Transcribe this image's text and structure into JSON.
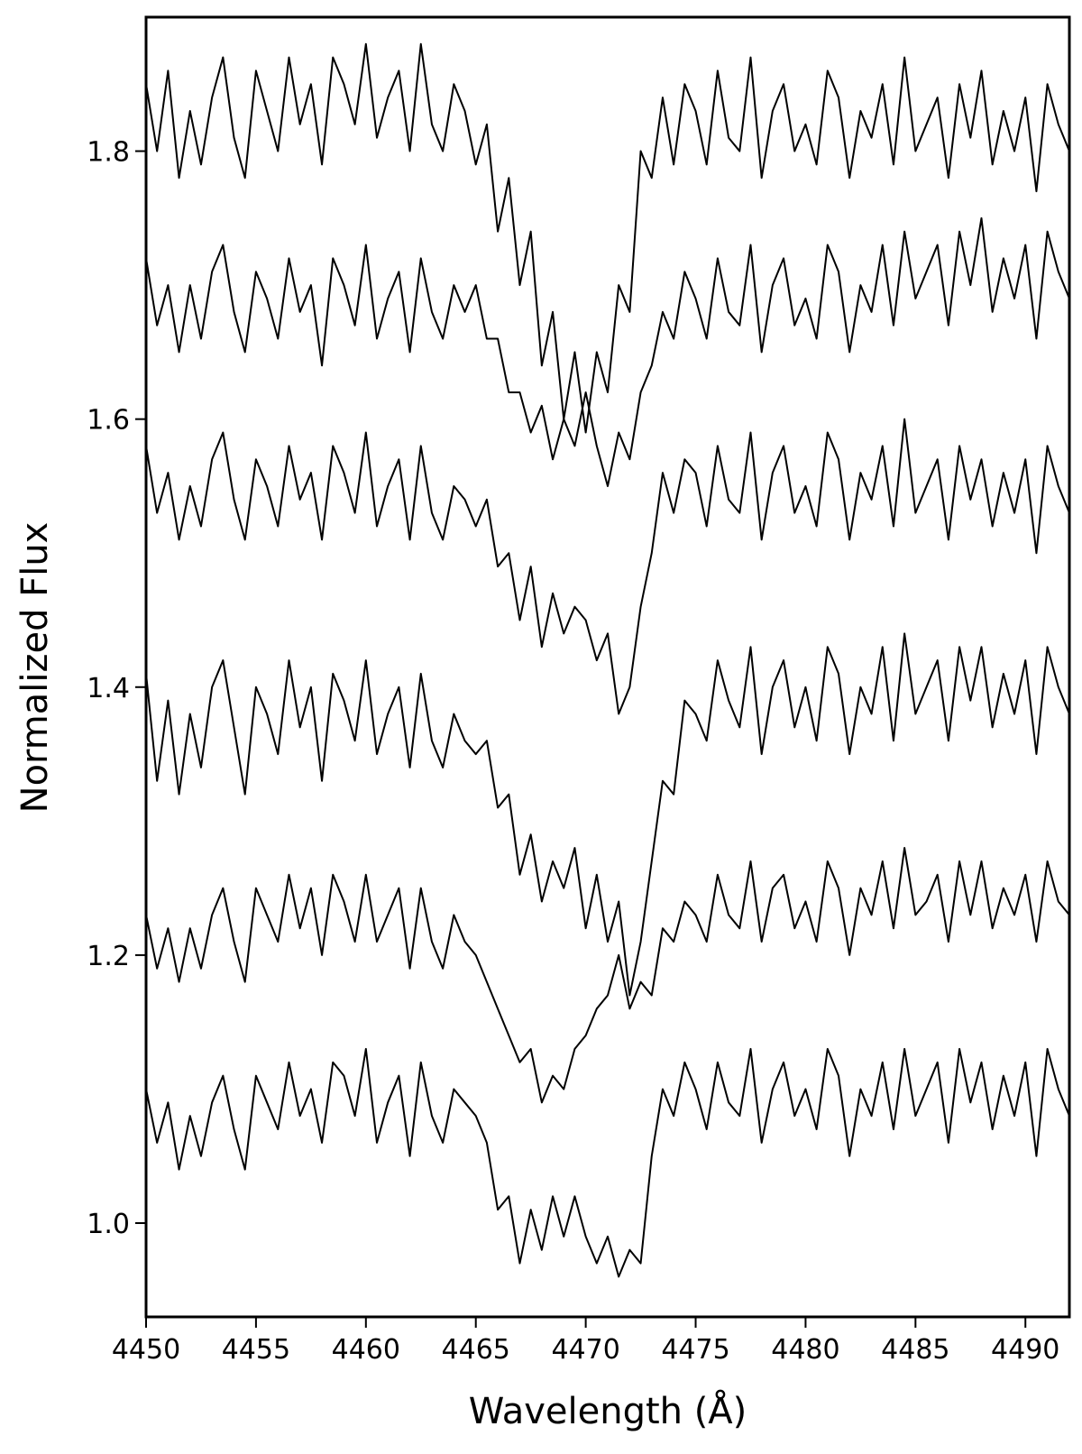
{
  "chart_data": {
    "type": "line",
    "xlabel": "Wavelength (Å)",
    "ylabel": "Normalized Flux",
    "xlim": [
      4450,
      4492
    ],
    "ylim": [
      0.93,
      1.9
    ],
    "xticks": [
      4450,
      4455,
      4460,
      4465,
      4470,
      4475,
      4480,
      4485,
      4490
    ],
    "yticks": [
      {
        "value": 1,
        "label": "1.0"
      },
      1.2,
      1.4,
      1.6,
      1.8
    ],
    "x": [
      4450,
      4450.5,
      4451,
      4451.5,
      4452,
      4452.5,
      4453,
      4453.5,
      4454,
      4454.5,
      4455,
      4455.5,
      4456,
      4456.5,
      4457,
      4457.5,
      4458,
      4458.5,
      4459,
      4459.5,
      4460,
      4460.5,
      4461,
      4461.5,
      4462,
      4462.5,
      4463,
      4463.5,
      4464,
      4464.5,
      4465,
      4465.5,
      4466,
      4466.5,
      4467,
      4467.5,
      4468,
      4468.5,
      4469,
      4469.5,
      4470,
      4470.5,
      4471,
      4471.5,
      4472,
      4472.5,
      4473,
      4473.5,
      4474,
      4474.5,
      4475,
      4475.5,
      4476,
      4476.5,
      4477,
      4477.5,
      4478,
      4478.5,
      4479,
      4479.5,
      4480,
      4480.5,
      4481,
      4481.5,
      4482,
      4482.5,
      4483,
      4483.5,
      4484,
      4484.5,
      4485,
      4485.5,
      4486,
      4486.5,
      4487,
      4487.5,
      4488,
      4488.5,
      4489,
      4489.5,
      4490,
      4490.5,
      4491,
      4491.5,
      4492
    ],
    "series": [
      {
        "color": "#000000",
        "values": [
          1.85,
          1.8,
          1.86,
          1.78,
          1.83,
          1.79,
          1.84,
          1.87,
          1.81,
          1.78,
          1.86,
          1.83,
          1.8,
          1.87,
          1.82,
          1.85,
          1.79,
          1.87,
          1.85,
          1.82,
          1.88,
          1.81,
          1.84,
          1.86,
          1.8,
          1.88,
          1.82,
          1.8,
          1.85,
          1.83,
          1.79,
          1.82,
          1.74,
          1.78,
          1.7,
          1.74,
          1.64,
          1.68,
          1.6,
          1.65,
          1.59,
          1.65,
          1.62,
          1.7,
          1.68,
          1.8,
          1.78,
          1.84,
          1.79,
          1.85,
          1.83,
          1.79,
          1.86,
          1.81,
          1.8,
          1.87,
          1.78,
          1.83,
          1.85,
          1.8,
          1.82,
          1.79,
          1.86,
          1.84,
          1.78,
          1.83,
          1.81,
          1.85,
          1.79,
          1.87,
          1.8,
          1.82,
          1.84,
          1.78,
          1.85,
          1.81,
          1.86,
          1.79,
          1.83,
          1.8,
          1.84,
          1.77,
          1.85,
          1.82,
          1.8
        ]
      },
      {
        "color": "#000000",
        "values": [
          1.72,
          1.67,
          1.7,
          1.65,
          1.7,
          1.66,
          1.71,
          1.73,
          1.68,
          1.65,
          1.71,
          1.69,
          1.66,
          1.72,
          1.68,
          1.7,
          1.64,
          1.72,
          1.7,
          1.67,
          1.73,
          1.66,
          1.69,
          1.71,
          1.65,
          1.72,
          1.68,
          1.66,
          1.7,
          1.68,
          1.7,
          1.66,
          1.66,
          1.62,
          1.62,
          1.59,
          1.61,
          1.57,
          1.6,
          1.58,
          1.62,
          1.58,
          1.55,
          1.59,
          1.57,
          1.62,
          1.64,
          1.68,
          1.66,
          1.71,
          1.69,
          1.66,
          1.72,
          1.68,
          1.67,
          1.73,
          1.65,
          1.7,
          1.72,
          1.67,
          1.69,
          1.66,
          1.73,
          1.71,
          1.65,
          1.7,
          1.68,
          1.73,
          1.67,
          1.74,
          1.69,
          1.71,
          1.73,
          1.67,
          1.74,
          1.7,
          1.75,
          1.68,
          1.72,
          1.69,
          1.73,
          1.66,
          1.74,
          1.71,
          1.69
        ]
      },
      {
        "color": "#000000",
        "values": [
          1.58,
          1.53,
          1.56,
          1.51,
          1.55,
          1.52,
          1.57,
          1.59,
          1.54,
          1.51,
          1.57,
          1.55,
          1.52,
          1.58,
          1.54,
          1.56,
          1.51,
          1.58,
          1.56,
          1.53,
          1.59,
          1.52,
          1.55,
          1.57,
          1.51,
          1.58,
          1.53,
          1.51,
          1.55,
          1.54,
          1.52,
          1.54,
          1.49,
          1.5,
          1.45,
          1.49,
          1.43,
          1.47,
          1.44,
          1.46,
          1.45,
          1.42,
          1.44,
          1.38,
          1.4,
          1.46,
          1.5,
          1.56,
          1.53,
          1.57,
          1.56,
          1.52,
          1.58,
          1.54,
          1.53,
          1.59,
          1.51,
          1.56,
          1.58,
          1.53,
          1.55,
          1.52,
          1.59,
          1.57,
          1.51,
          1.56,
          1.54,
          1.58,
          1.52,
          1.6,
          1.53,
          1.55,
          1.57,
          1.51,
          1.58,
          1.54,
          1.57,
          1.52,
          1.56,
          1.53,
          1.57,
          1.5,
          1.58,
          1.55,
          1.53
        ]
      },
      {
        "color": "#000000",
        "values": [
          1.41,
          1.33,
          1.39,
          1.32,
          1.38,
          1.34,
          1.4,
          1.42,
          1.37,
          1.32,
          1.4,
          1.38,
          1.35,
          1.42,
          1.37,
          1.4,
          1.33,
          1.41,
          1.39,
          1.36,
          1.42,
          1.35,
          1.38,
          1.4,
          1.34,
          1.41,
          1.36,
          1.34,
          1.38,
          1.36,
          1.35,
          1.36,
          1.31,
          1.32,
          1.26,
          1.29,
          1.24,
          1.27,
          1.25,
          1.28,
          1.22,
          1.26,
          1.21,
          1.24,
          1.17,
          1.21,
          1.27,
          1.33,
          1.32,
          1.39,
          1.38,
          1.36,
          1.42,
          1.39,
          1.37,
          1.43,
          1.35,
          1.4,
          1.42,
          1.37,
          1.4,
          1.36,
          1.43,
          1.41,
          1.35,
          1.4,
          1.38,
          1.43,
          1.36,
          1.44,
          1.38,
          1.4,
          1.42,
          1.36,
          1.43,
          1.39,
          1.43,
          1.37,
          1.41,
          1.38,
          1.42,
          1.35,
          1.43,
          1.4,
          1.38
        ]
      },
      {
        "color": "#000000",
        "values": [
          1.23,
          1.19,
          1.22,
          1.18,
          1.22,
          1.19,
          1.23,
          1.25,
          1.21,
          1.18,
          1.25,
          1.23,
          1.21,
          1.26,
          1.22,
          1.25,
          1.2,
          1.26,
          1.24,
          1.21,
          1.26,
          1.21,
          1.23,
          1.25,
          1.19,
          1.25,
          1.21,
          1.19,
          1.23,
          1.21,
          1.2,
          1.18,
          1.16,
          1.14,
          1.12,
          1.13,
          1.09,
          1.11,
          1.1,
          1.13,
          1.14,
          1.16,
          1.17,
          1.2,
          1.16,
          1.18,
          1.17,
          1.22,
          1.21,
          1.24,
          1.23,
          1.21,
          1.26,
          1.23,
          1.22,
          1.27,
          1.21,
          1.25,
          1.26,
          1.22,
          1.24,
          1.21,
          1.27,
          1.25,
          1.2,
          1.25,
          1.23,
          1.27,
          1.22,
          1.28,
          1.23,
          1.24,
          1.26,
          1.21,
          1.27,
          1.23,
          1.27,
          1.22,
          1.25,
          1.23,
          1.26,
          1.21,
          1.27,
          1.24,
          1.23
        ]
      },
      {
        "color": "#000000",
        "values": [
          1.1,
          1.06,
          1.09,
          1.04,
          1.08,
          1.05,
          1.09,
          1.11,
          1.07,
          1.04,
          1.11,
          1.09,
          1.07,
          1.12,
          1.08,
          1.1,
          1.06,
          1.12,
          1.11,
          1.08,
          1.13,
          1.06,
          1.09,
          1.11,
          1.05,
          1.12,
          1.08,
          1.06,
          1.1,
          1.09,
          1.08,
          1.06,
          1.01,
          1.02,
          0.97,
          1.01,
          0.98,
          1.02,
          0.99,
          1.02,
          0.99,
          0.97,
          0.99,
          0.96,
          0.98,
          0.97,
          1.05,
          1.1,
          1.08,
          1.12,
          1.1,
          1.07,
          1.12,
          1.09,
          1.08,
          1.13,
          1.06,
          1.1,
          1.12,
          1.08,
          1.1,
          1.07,
          1.13,
          1.11,
          1.05,
          1.1,
          1.08,
          1.12,
          1.07,
          1.13,
          1.08,
          1.1,
          1.12,
          1.06,
          1.13,
          1.09,
          1.12,
          1.07,
          1.11,
          1.08,
          1.12,
          1.05,
          1.13,
          1.1,
          1.08
        ]
      }
    ]
  }
}
